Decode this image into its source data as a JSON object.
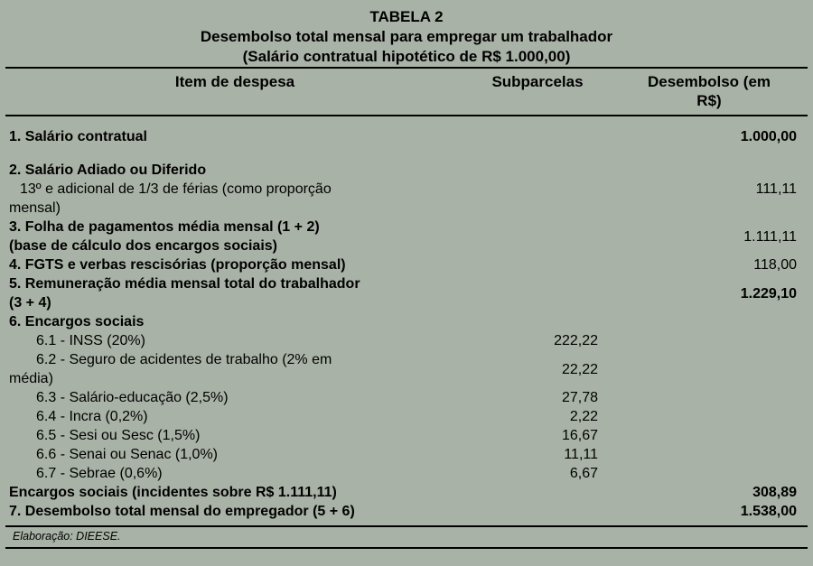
{
  "header": {
    "title": "TABELA 2",
    "subtitle": "Desembolso total mensal para empregar um trabalhador",
    "hypothesis": "(Salário contratual hipotético de R$ 1.000,00)"
  },
  "columns": {
    "item": "Item de despesa",
    "sub": "Subparcelas",
    "value": "Desembolso (em R$)"
  },
  "rows": [
    {
      "item": "1. Salário contratual",
      "sub": "",
      "value": "1.000,00",
      "item_bold": true,
      "value_bold": true,
      "indent": false,
      "gap_before": false
    },
    {
      "item": "2. Salário Adiado ou Diferido",
      "detail": "13º e adicional de 1/3 de férias (como proporção mensal)",
      "sub": "",
      "value": "111,11",
      "item_bold": true,
      "value_bold": false,
      "indent": false,
      "gap_before": true
    },
    {
      "item": "3. Folha de pagamentos média mensal (1 + 2)\n(base de cálculo dos encargos sociais)",
      "sub": "",
      "value": "1.111,11",
      "item_bold": true,
      "value_bold": false,
      "indent": false,
      "gap_before": false
    },
    {
      "item": "4. FGTS e verbas rescisórias (proporção mensal)",
      "sub": "",
      "value": "118,00",
      "item_bold": true,
      "value_bold": false,
      "indent": false,
      "gap_before": false
    },
    {
      "item": "5. Remuneração média mensal total do trabalhador\n(3 + 4)",
      "sub": "",
      "value": "1.229,10",
      "item_bold": true,
      "value_bold": true,
      "indent": false,
      "gap_before": false
    },
    {
      "item": "6. Encargos sociais",
      "sub": "",
      "value": "",
      "item_bold": true,
      "value_bold": false,
      "indent": false,
      "gap_before": false
    },
    {
      "item": "6.1 - INSS (20%)",
      "sub": "222,22",
      "value": "",
      "item_bold": false,
      "value_bold": false,
      "indent": true,
      "gap_before": false
    },
    {
      "item": "6.2 - Seguro de acidentes de trabalho (2% em média)",
      "sub": "22,22",
      "value": "",
      "item_bold": false,
      "value_bold": false,
      "indent": true,
      "gap_before": false
    },
    {
      "item": "6.3 - Salário-educação (2,5%)",
      "sub": "27,78",
      "value": "",
      "item_bold": false,
      "value_bold": false,
      "indent": true,
      "gap_before": false
    },
    {
      "item": "6.4 - Incra (0,2%)",
      "sub": "2,22",
      "value": "",
      "item_bold": false,
      "value_bold": false,
      "indent": true,
      "gap_before": false
    },
    {
      "item": "6.5 - Sesi ou Sesc (1,5%)",
      "sub": "16,67",
      "value": "",
      "item_bold": false,
      "value_bold": false,
      "indent": true,
      "gap_before": false
    },
    {
      "item": "6.6 - Senai ou Senac (1,0%)",
      "sub": "11,11",
      "value": "",
      "item_bold": false,
      "value_bold": false,
      "indent": true,
      "gap_before": false
    },
    {
      "item": "6.7 - Sebrae (0,6%)",
      "sub": "6,67",
      "value": "",
      "item_bold": false,
      "value_bold": false,
      "indent": true,
      "gap_before": false
    },
    {
      "item": "Encargos sociais (incidentes sobre R$ 1.111,11)",
      "sub": "",
      "value": "308,89",
      "item_bold": true,
      "value_bold": true,
      "indent": false,
      "gap_before": false
    },
    {
      "item": "7.  Desembolso total mensal do empregador (5 + 6)",
      "sub": "",
      "value": "1.538,00",
      "item_bold": true,
      "value_bold": true,
      "indent": false,
      "gap_before": false
    }
  ],
  "footer": {
    "source": "Elaboração: DIEESE."
  },
  "colors": {
    "background": "#a9b2a6",
    "text": "#000000",
    "rule": "#000000"
  }
}
